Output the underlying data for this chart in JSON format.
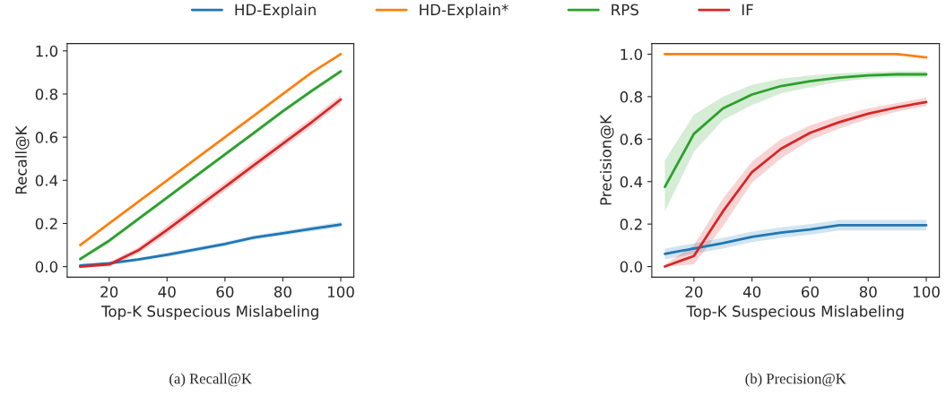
{
  "chart_data": [
    {
      "type": "line",
      "xlabel": "Top-K Suspecious Mislabeling",
      "ylabel": "Recall@K",
      "annotations": [
        "(a) Recall@K"
      ],
      "legend": "top",
      "grid": false,
      "xlim": [
        5.5,
        104.5
      ],
      "ylim": [
        -0.049,
        1.034
      ],
      "xticks": [
        20,
        40,
        60,
        80,
        100
      ],
      "yticks": [
        {
          "value": 0,
          "label": "0.0"
        },
        {
          "value": 0.2,
          "label": "0.2"
        },
        {
          "value": 0.4,
          "label": "0.4"
        },
        {
          "value": 0.6,
          "label": "0.6"
        },
        {
          "value": 0.8,
          "label": "0.8"
        },
        {
          "value": 1,
          "label": "1.0"
        }
      ],
      "x": [
        10,
        20,
        30,
        40,
        50,
        60,
        70,
        80,
        90,
        100
      ],
      "series": [
        {
          "name": "HD-Explain",
          "color": "#1f77b4",
          "values": [
            0.005,
            0.015,
            0.033,
            0.055,
            0.08,
            0.105,
            0.135,
            0.155,
            0.175,
            0.195
          ],
          "lower": [
            0.0,
            0.008,
            0.025,
            0.045,
            0.07,
            0.095,
            0.125,
            0.145,
            0.163,
            0.183
          ],
          "upper": [
            0.012,
            0.022,
            0.041,
            0.065,
            0.09,
            0.115,
            0.145,
            0.165,
            0.187,
            0.207
          ]
        },
        {
          "name": "HD-Explain*",
          "color": "#ff7f0e",
          "values": [
            0.1,
            0.2,
            0.3,
            0.4,
            0.5,
            0.6,
            0.7,
            0.8,
            0.9,
            0.985
          ]
        },
        {
          "name": "RPS",
          "color": "#2ca02c",
          "values": [
            0.035,
            0.12,
            0.22,
            0.32,
            0.42,
            0.52,
            0.62,
            0.72,
            0.815,
            0.905
          ],
          "lower": [
            0.025,
            0.11,
            0.21,
            0.31,
            0.41,
            0.51,
            0.61,
            0.71,
            0.805,
            0.895
          ],
          "upper": [
            0.045,
            0.13,
            0.23,
            0.33,
            0.43,
            0.53,
            0.63,
            0.73,
            0.825,
            0.915
          ]
        },
        {
          "name": "IF",
          "color": "#d62728",
          "values": [
            0.0,
            0.01,
            0.075,
            0.17,
            0.27,
            0.37,
            0.47,
            0.57,
            0.67,
            0.775
          ],
          "lower": [
            0.0,
            0.0,
            0.06,
            0.15,
            0.25,
            0.35,
            0.45,
            0.55,
            0.65,
            0.755
          ],
          "upper": [
            0.01,
            0.02,
            0.09,
            0.19,
            0.29,
            0.39,
            0.49,
            0.59,
            0.69,
            0.795
          ]
        }
      ]
    },
    {
      "type": "line",
      "xlabel": "Top-K Suspecious Mislabeling",
      "ylabel": "Precision@K",
      "annotations": [
        "(b) Precision@K"
      ],
      "grid": false,
      "xlim": [
        5.5,
        104.5
      ],
      "ylim": [
        -0.05,
        1.05
      ],
      "xticks": [
        20,
        40,
        60,
        80,
        100
      ],
      "yticks": [
        {
          "value": 0,
          "label": "0.0"
        },
        {
          "value": 0.2,
          "label": "0.2"
        },
        {
          "value": 0.4,
          "label": "0.4"
        },
        {
          "value": 0.6,
          "label": "0.6"
        },
        {
          "value": 0.8,
          "label": "0.8"
        },
        {
          "value": 1,
          "label": "1.0"
        }
      ],
      "x": [
        10,
        20,
        30,
        40,
        50,
        60,
        70,
        80,
        90,
        100
      ],
      "series": [
        {
          "name": "HD-Explain",
          "color": "#1f77b4",
          "values": [
            0.06,
            0.085,
            0.11,
            0.14,
            0.16,
            0.175,
            0.195,
            0.195,
            0.195,
            0.195
          ],
          "lower": [
            0.035,
            0.06,
            0.085,
            0.115,
            0.135,
            0.15,
            0.17,
            0.17,
            0.17,
            0.17
          ],
          "upper": [
            0.085,
            0.11,
            0.135,
            0.165,
            0.185,
            0.2,
            0.22,
            0.22,
            0.22,
            0.22
          ]
        },
        {
          "name": "HD-Explain*",
          "color": "#ff7f0e",
          "values": [
            1,
            1,
            1,
            1,
            1,
            1,
            1,
            1,
            1,
            0.985
          ]
        },
        {
          "name": "RPS",
          "color": "#2ca02c",
          "values": [
            0.375,
            0.625,
            0.745,
            0.81,
            0.85,
            0.873,
            0.89,
            0.9,
            0.905,
            0.905
          ],
          "lower": [
            0.26,
            0.54,
            0.69,
            0.76,
            0.815,
            0.845,
            0.87,
            0.885,
            0.89,
            0.89
          ],
          "upper": [
            0.5,
            0.715,
            0.8,
            0.855,
            0.885,
            0.9,
            0.91,
            0.915,
            0.92,
            0.92
          ]
        },
        {
          "name": "IF",
          "color": "#d62728",
          "values": [
            0.0,
            0.05,
            0.26,
            0.445,
            0.555,
            0.63,
            0.68,
            0.72,
            0.75,
            0.775
          ],
          "lower": [
            0.0,
            0.01,
            0.19,
            0.395,
            0.51,
            0.595,
            0.65,
            0.695,
            0.73,
            0.755
          ],
          "upper": [
            0.01,
            0.1,
            0.32,
            0.495,
            0.6,
            0.665,
            0.71,
            0.745,
            0.77,
            0.795
          ]
        }
      ]
    }
  ]
}
